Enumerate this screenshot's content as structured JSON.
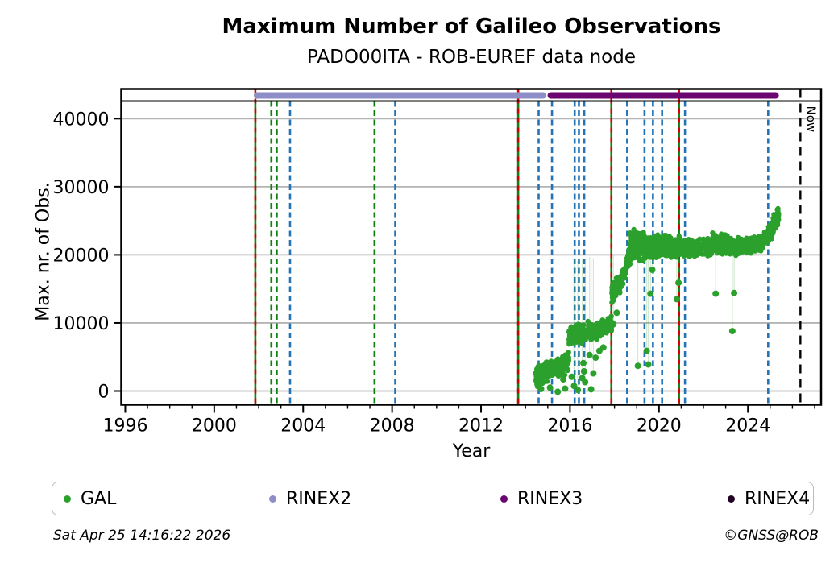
{
  "header": {
    "title": "Maximum Number of Galileo Observations",
    "subtitle": "PADO00ITA - ROB-EUREF data node"
  },
  "legend": {
    "items": [
      {
        "label": "GAL",
        "color": "#2ca02c"
      },
      {
        "label": "RINEX2",
        "color": "#8d8ec7"
      },
      {
        "label": "RINEX3",
        "color": "#6b0570"
      },
      {
        "label": "RINEX4",
        "color": "#220225"
      }
    ]
  },
  "footer": {
    "timestamp": "Sat Apr 25 14:16:22 2026",
    "copyright": "©GNSS@ROB"
  },
  "chart_data": {
    "type": "scatter",
    "title": "Maximum Number of Galileo Observations",
    "subtitle": "PADO00ITA - ROB-EUREF data node",
    "xlabel": "Year",
    "ylabel": "Max. nr. of Obs.",
    "xlim": [
      1995.82,
      2027.29
    ],
    "ylim": [
      -2010,
      42580
    ],
    "xticks_major": [
      1996,
      2000,
      2004,
      2008,
      2012,
      2016,
      2020,
      2024
    ],
    "xticks_minor_step": 1,
    "yticks": [
      0,
      10000,
      20000,
      30000,
      40000
    ],
    "grid": "horizontal-gray",
    "frame_color": "#000000",
    "grid_color": "#b4b4b4",
    "now_marker": {
      "label": "Now",
      "year": 2026.36,
      "color": "#000000",
      "style": "dashed"
    },
    "availability_bars": [
      {
        "name": "RINEX2",
        "start": 2001.78,
        "end": 2014.93,
        "color": "#8d8ec7"
      },
      {
        "name": "RINEX3",
        "start": 2014.99,
        "end": 2025.39,
        "color": "#6b0570"
      }
    ],
    "event_lines": {
      "green_with_red_years": [
        2001.85,
        2013.67,
        2017.86,
        2020.9
      ],
      "green_years": [
        2002.57,
        2002.81,
        2007.21
      ],
      "blue_years": [
        2003.41,
        2008.14,
        2014.59,
        2015.19,
        2016.21,
        2016.4,
        2016.64,
        2018.57,
        2019.35,
        2019.73,
        2020.14,
        2021.17,
        2024.91
      ],
      "green_color": "#108010",
      "blue_color": "#2474b5",
      "red_color": "#d40000"
    },
    "series": [
      {
        "name": "GAL",
        "color": "#2ca02c",
        "marker": "circle",
        "clusters_format": [
          "year_start",
          "year_end",
          "value_low_start",
          "value_high_start",
          "value_low_end",
          "value_high_end",
          "n_points"
        ],
        "clusters": [
          [
            2014.45,
            2015.15,
            400,
            3700,
            1500,
            4800,
            170
          ],
          [
            2015.15,
            2015.95,
            1500,
            4800,
            2500,
            5800,
            120
          ],
          [
            2015.95,
            2016.35,
            6200,
            9300,
            6800,
            10200,
            90
          ],
          [
            2016.35,
            2017.45,
            6800,
            10200,
            7600,
            10800,
            160
          ],
          [
            2017.45,
            2017.88,
            8000,
            10800,
            8600,
            11300,
            70
          ],
          [
            2017.88,
            2018.3,
            12800,
            16000,
            14500,
            17300,
            90
          ],
          [
            2018.3,
            2018.7,
            14800,
            17500,
            18500,
            21500,
            80
          ],
          [
            2018.7,
            2019.4,
            18800,
            23900,
            19000,
            23500,
            150
          ],
          [
            2019.4,
            2021.0,
            19200,
            23200,
            19400,
            23000,
            260
          ],
          [
            2021.0,
            2022.4,
            19500,
            22400,
            19700,
            22600,
            220
          ],
          [
            2022.4,
            2023.2,
            20000,
            23300,
            20000,
            23000,
            130
          ],
          [
            2023.2,
            2024.6,
            19700,
            22500,
            20200,
            23000,
            220
          ],
          [
            2024.6,
            2025.12,
            20600,
            23200,
            22400,
            25300,
            110
          ],
          [
            2025.12,
            2025.38,
            22800,
            25800,
            24600,
            27300,
            80
          ]
        ],
        "outliers_format": [
          "year",
          "value",
          "stem"
        ],
        "outliers": [
          [
            2014.7,
            300,
            0
          ],
          [
            2015.1,
            500,
            0
          ],
          [
            2015.45,
            -100,
            0
          ],
          [
            2015.7,
            1700,
            0
          ],
          [
            2015.78,
            350,
            0
          ],
          [
            2016.08,
            2100,
            0
          ],
          [
            2016.18,
            750,
            1
          ],
          [
            2016.35,
            150,
            1
          ],
          [
            2016.55,
            1900,
            1
          ],
          [
            2016.6,
            4100,
            0
          ],
          [
            2016.63,
            2900,
            0
          ],
          [
            2016.68,
            1300,
            1
          ],
          [
            2016.88,
            5300,
            1
          ],
          [
            2016.95,
            250,
            1
          ],
          [
            2017.05,
            2600,
            1
          ],
          [
            2017.15,
            4900,
            0
          ],
          [
            2017.32,
            5900,
            0
          ],
          [
            2017.5,
            6400,
            0
          ],
          [
            2017.95,
            9800,
            1
          ],
          [
            2018.1,
            11500,
            0
          ],
          [
            2019.05,
            3700,
            1
          ],
          [
            2019.45,
            5900,
            1
          ],
          [
            2019.52,
            3900,
            1
          ],
          [
            2019.62,
            14300,
            1
          ],
          [
            2019.7,
            17800,
            1
          ],
          [
            2020.8,
            13500,
            1
          ],
          [
            2020.88,
            15900,
            1
          ],
          [
            2022.55,
            14300,
            1
          ],
          [
            2023.3,
            8800,
            1
          ],
          [
            2023.38,
            14400,
            1
          ]
        ]
      }
    ]
  }
}
